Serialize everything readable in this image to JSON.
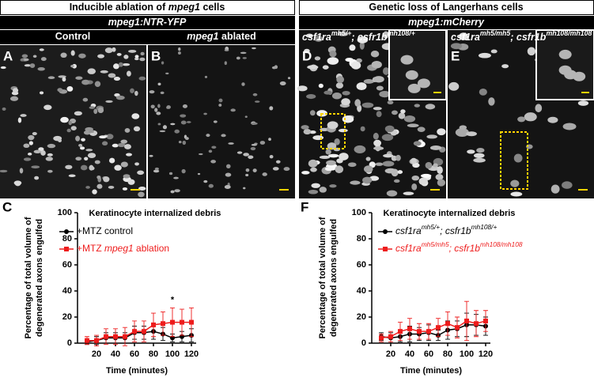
{
  "header": {
    "left": [
      {
        "t": "Inducible ablation of "
      },
      {
        "t": "mpeg1",
        "i": true
      },
      {
        "t": " cells"
      }
    ],
    "right": [
      {
        "t": "Genetic loss of Langerhans cells"
      }
    ],
    "left_sub": [
      {
        "t": "mpeg1:NTR-YFP",
        "i": true
      }
    ],
    "right_sub": [
      {
        "t": "mpeg1:mCherry",
        "i": true
      }
    ]
  },
  "panels": [
    {
      "letter": "A",
      "title": [
        {
          "t": "Control"
        }
      ]
    },
    {
      "letter": "B",
      "title": [
        {
          "t": "mpeg1",
          "i": true
        },
        {
          "t": " ablated"
        }
      ]
    },
    {
      "letter": "D",
      "title": [
        {
          "t": "csf1ra",
          "i": true
        },
        {
          "t": "mh5/+",
          "i": true,
          "sup": true
        },
        {
          "t": "; ",
          "i": true
        },
        {
          "t": "csfr1b",
          "i": true
        },
        {
          "t": "mh108/+",
          "i": true,
          "sup": true
        }
      ]
    },
    {
      "letter": "E",
      "title": [
        {
          "t": "csf1ra",
          "i": true
        },
        {
          "t": "mh5/mh5",
          "i": true,
          "sup": true
        },
        {
          "t": "; ",
          "i": true
        },
        {
          "t": "csfr1b",
          "i": true
        },
        {
          "t": "mh108/mh108",
          "i": true,
          "sup": true
        }
      ]
    }
  ],
  "chart_data": [
    {
      "type": "line",
      "letter": "C",
      "title": "Keratinocyte internalized debris",
      "y_label": [
        "Percentage of total volume of",
        "degenerated axons engulfed"
      ],
      "x_label": "Time (minutes)",
      "x": [
        10,
        20,
        30,
        40,
        50,
        60,
        70,
        80,
        90,
        100,
        110,
        120
      ],
      "xlim": [
        0,
        125
      ],
      "xticks": [
        20,
        40,
        60,
        80,
        100,
        120
      ],
      "ylim": [
        0,
        100
      ],
      "yticks": [
        0,
        20,
        40,
        60,
        80,
        100
      ],
      "series": [
        {
          "name": [
            {
              "t": "+MTZ control"
            }
          ],
          "color": "#000000",
          "marker": "circle",
          "values": [
            1,
            2,
            4,
            4,
            4,
            8,
            8,
            9,
            7,
            4,
            5,
            6
          ],
          "errors": [
            2,
            3,
            4,
            4,
            4,
            5,
            5,
            6,
            5,
            3,
            4,
            5
          ]
        },
        {
          "name": [
            {
              "t": "+MTZ "
            },
            {
              "t": "mpeg1",
              "i": true
            },
            {
              "t": " ablation"
            }
          ],
          "color": "#ee1c1c",
          "marker": "square",
          "values": [
            2,
            2,
            5,
            5,
            5,
            9,
            9,
            14,
            15,
            16,
            16,
            16
          ],
          "errors": [
            3,
            4,
            6,
            6,
            7,
            8,
            8,
            9,
            9,
            11,
            10,
            11
          ]
        }
      ],
      "annotations": [
        {
          "text": "*",
          "x": 100
        }
      ]
    },
    {
      "type": "line",
      "letter": "F",
      "title": "Keratinocyte internalized debris",
      "y_label": [
        "Percentage of total volume of",
        "degenerated axons engulfed"
      ],
      "x_label": "Time (minutes)",
      "x": [
        10,
        20,
        30,
        40,
        50,
        60,
        70,
        80,
        90,
        100,
        110,
        120
      ],
      "xlim": [
        0,
        125
      ],
      "xticks": [
        20,
        40,
        60,
        80,
        100,
        120
      ],
      "ylim": [
        0,
        100
      ],
      "yticks": [
        0,
        20,
        40,
        60,
        80,
        100
      ],
      "series": [
        {
          "name": [
            {
              "t": "csf1ra",
              "i": true
            },
            {
              "t": "mh5/+",
              "i": true,
              "sup": true
            },
            {
              "t": "; ",
              "i": true
            },
            {
              "t": "csfr1b",
              "i": true
            },
            {
              "t": "mh108/+",
              "i": true,
              "sup": true
            }
          ],
          "color": "#000000",
          "marker": "circle",
          "values": [
            5,
            4,
            5,
            7,
            7,
            8,
            6,
            10,
            11,
            14,
            14,
            13
          ],
          "errors": [
            3,
            4,
            4,
            6,
            5,
            6,
            4,
            7,
            6,
            9,
            8,
            7
          ]
        },
        {
          "name": [
            {
              "t": "csf1ra",
              "i": true
            },
            {
              "t": "mh5/mh5",
              "i": true,
              "sup": true
            },
            {
              "t": "; ",
              "i": true
            },
            {
              "t": "csfr1b",
              "i": true
            },
            {
              "t": "mh108/mh108",
              "i": true,
              "sup": true
            }
          ],
          "color": "#ee1c1c",
          "marker": "square",
          "values": [
            4,
            5,
            9,
            11,
            9,
            9,
            12,
            15,
            12,
            17,
            15,
            17
          ],
          "errors": [
            3,
            4,
            7,
            8,
            6,
            6,
            7,
            9,
            8,
            15,
            10,
            8
          ]
        }
      ],
      "annotations": []
    }
  ]
}
